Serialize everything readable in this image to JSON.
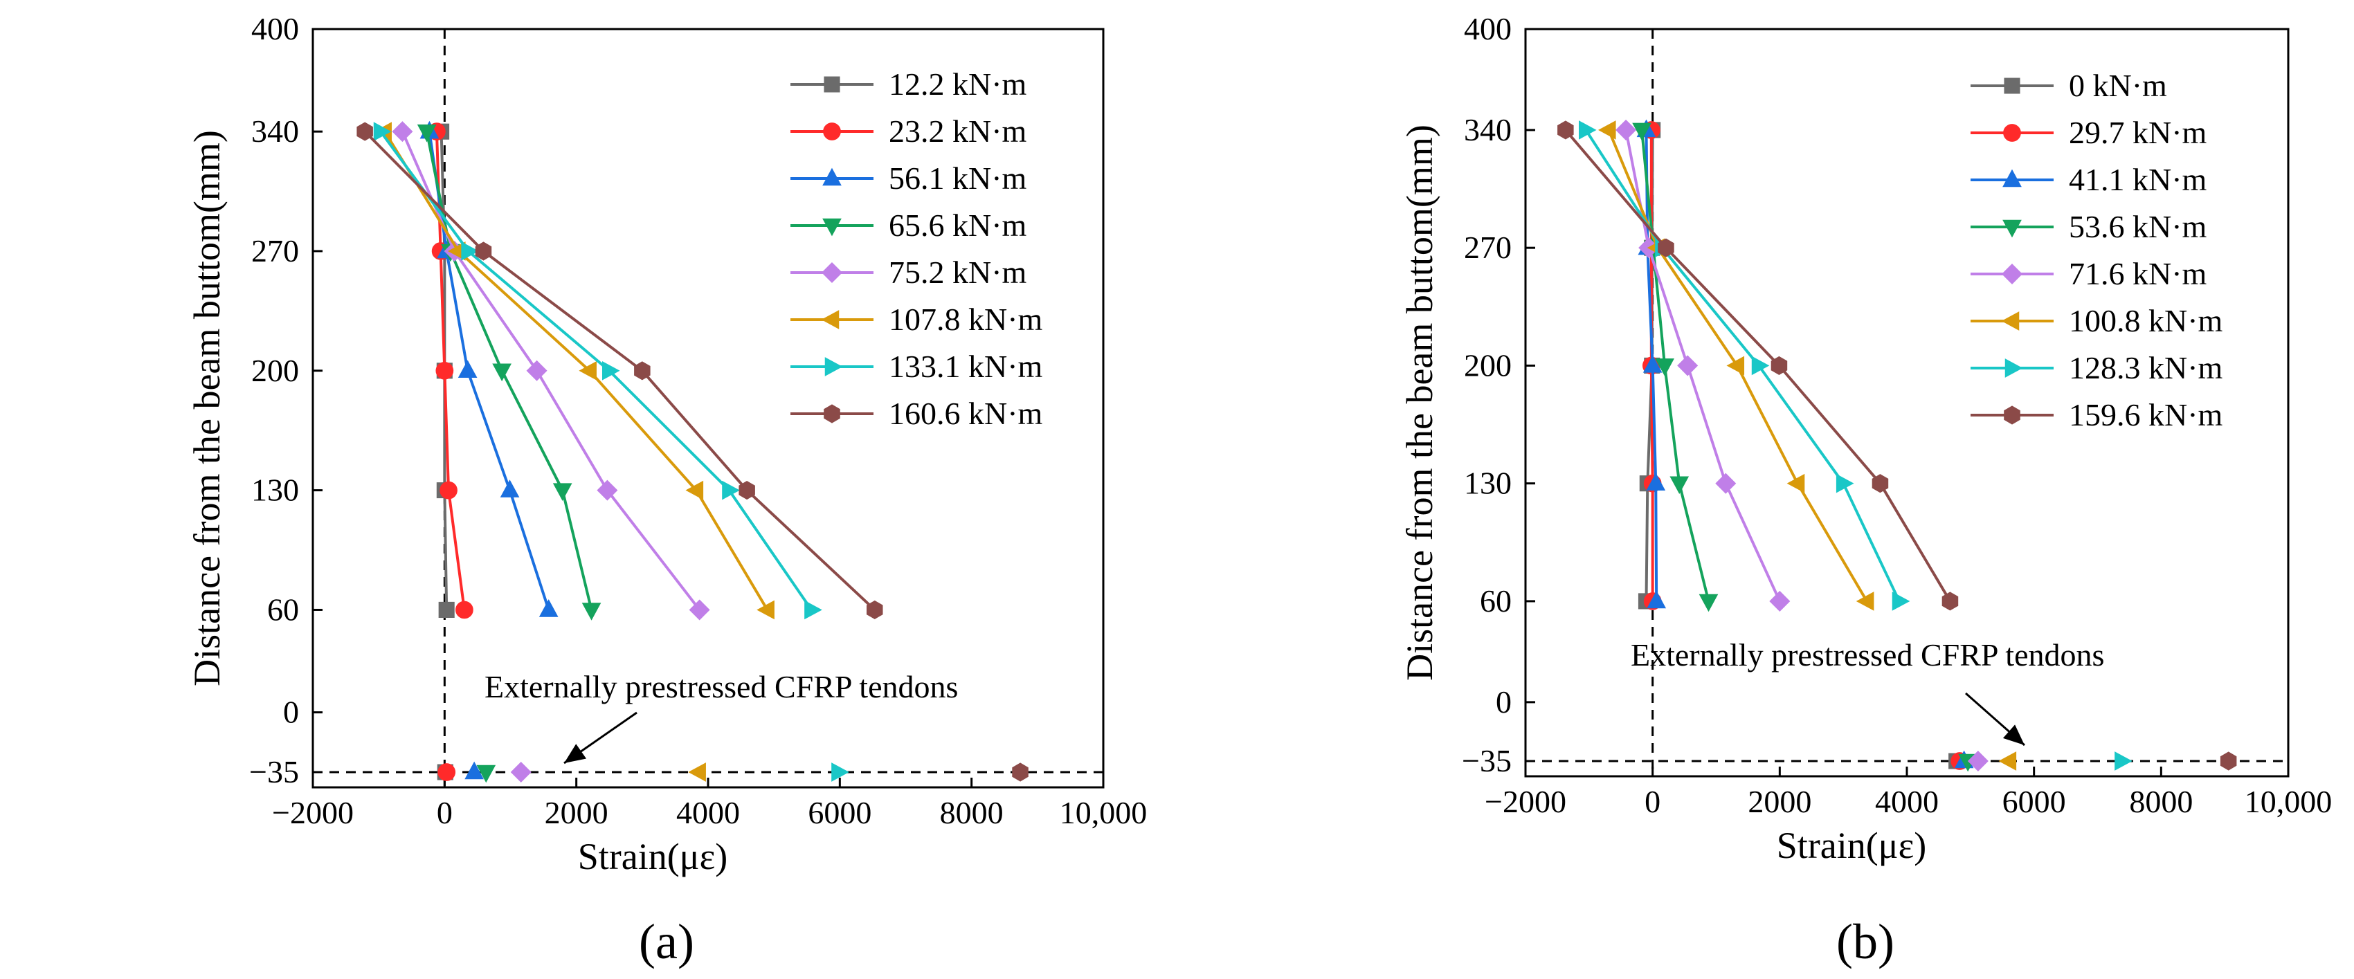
{
  "chart_data": [
    {
      "type": "line",
      "panel_label": "(a)",
      "xlabel": "Strain(με)",
      "ylabel": "Distance from the beam buttom(mm)",
      "xlim": [
        -2000,
        10000
      ],
      "xticks": [
        -2000,
        0,
        2000,
        4000,
        6000,
        8000,
        10000
      ],
      "xtick_labels": [
        "−2000",
        "0",
        "2000",
        "4000",
        "6000",
        "8000",
        "10,000"
      ],
      "yticks": [
        -35,
        0,
        60,
        130,
        200,
        270,
        340,
        400
      ],
      "ytick_labels": [
        "−35",
        "0",
        "60",
        "130",
        "200",
        "270",
        "340",
        "400"
      ],
      "annotation": "Externally prestressed CFRP tendons",
      "legend_position": "top-right",
      "section_y": [
        340,
        270,
        200,
        130,
        60
      ],
      "tendon_y": -35,
      "series": [
        {
          "name": "12.2 kN·m",
          "color": "#6b6b6b",
          "marker": "square",
          "strains": [
            -50,
            0,
            0,
            0,
            30
          ],
          "tendon": 10
        },
        {
          "name": "23.2 kN·m",
          "color": "#ff2a2a",
          "marker": "circle",
          "strains": [
            -120,
            -60,
            0,
            60,
            300
          ],
          "tendon": 30
        },
        {
          "name": "56.1 kN·m",
          "color": "#1a6fdf",
          "marker": "triangle-up",
          "strains": [
            -230,
            30,
            350,
            990,
            1580
          ],
          "tendon": 450
        },
        {
          "name": "65.6 kN·m",
          "color": "#14a35c",
          "marker": "triangle-down",
          "strains": [
            -270,
            90,
            870,
            1790,
            2230
          ],
          "tendon": 630
        },
        {
          "name": "75.2 kN·m",
          "color": "#c07fe8",
          "marker": "diamond",
          "strains": [
            -640,
            150,
            1400,
            2470,
            3870
          ],
          "tendon": 1160
        },
        {
          "name": "107.8 kN·m",
          "color": "#d99a0b",
          "marker": "triangle-left",
          "strains": [
            -910,
            210,
            2200,
            3820,
            4900
          ],
          "tendon": 3860
        },
        {
          "name": "133.1 kN·m",
          "color": "#19c7c7",
          "marker": "triangle-right",
          "strains": [
            -970,
            360,
            2500,
            4320,
            5570
          ],
          "tendon": 5980
        },
        {
          "name": "160.6 kN·m",
          "color": "#8b4a48",
          "marker": "hexagon",
          "strains": [
            -1210,
            590,
            3000,
            4590,
            6530
          ],
          "tendon": 8740
        }
      ]
    },
    {
      "type": "line",
      "panel_label": "(b)",
      "xlabel": "Strain(με)",
      "ylabel": "Distance from the beam buttom(mm)",
      "xlim": [
        -2000,
        10000
      ],
      "xticks": [
        -2000,
        0,
        2000,
        4000,
        6000,
        8000,
        10000
      ],
      "xtick_labels": [
        "−2000",
        "0",
        "2000",
        "4000",
        "6000",
        "8000",
        "10,000"
      ],
      "yticks": [
        -35,
        0,
        60,
        130,
        200,
        270,
        340,
        400
      ],
      "ytick_labels": [
        "−35",
        "0",
        "60",
        "130",
        "200",
        "270",
        "340",
        "400"
      ],
      "annotation": "Externally prestressed CFRP tendons",
      "legend_position": "top-left",
      "section_y": [
        340,
        270,
        200,
        130,
        60
      ],
      "tendon_y": -35,
      "series": [
        {
          "name": "0 kN·m",
          "color": "#6b6b6b",
          "marker": "square",
          "strains": [
            0,
            -10,
            -10,
            -80,
            -100
          ],
          "tendon": 4780
        },
        {
          "name": "29.7 kN·m",
          "color": "#ff2a2a",
          "marker": "circle",
          "strains": [
            -20,
            -20,
            -20,
            0,
            0
          ],
          "tendon": 4830
        },
        {
          "name": "41.1 kN·m",
          "color": "#1a6fdf",
          "marker": "triangle-up",
          "strains": [
            -100,
            -80,
            0,
            50,
            60
          ],
          "tendon": 4900
        },
        {
          "name": "53.6 kN·m",
          "color": "#14a35c",
          "marker": "triangle-down",
          "strains": [
            -170,
            10,
            190,
            420,
            880
          ],
          "tendon": 4960
        },
        {
          "name": "71.6 kN·m",
          "color": "#c07fe8",
          "marker": "diamond",
          "strains": [
            -420,
            -60,
            550,
            1150,
            2000
          ],
          "tendon": 5120
        },
        {
          "name": "100.8 kN·m",
          "color": "#d99a0b",
          "marker": "triangle-left",
          "strains": [
            -690,
            80,
            1330,
            2280,
            3370
          ],
          "tendon": 5610
        },
        {
          "name": "128.3 kN·m",
          "color": "#19c7c7",
          "marker": "triangle-right",
          "strains": [
            -1050,
            150,
            1670,
            3000,
            3880
          ],
          "tendon": 7380
        },
        {
          "name": "159.6 kN·m",
          "color": "#8b4a48",
          "marker": "hexagon",
          "strains": [
            -1370,
            210,
            1990,
            3580,
            4680
          ],
          "tendon": 9060
        }
      ]
    }
  ]
}
